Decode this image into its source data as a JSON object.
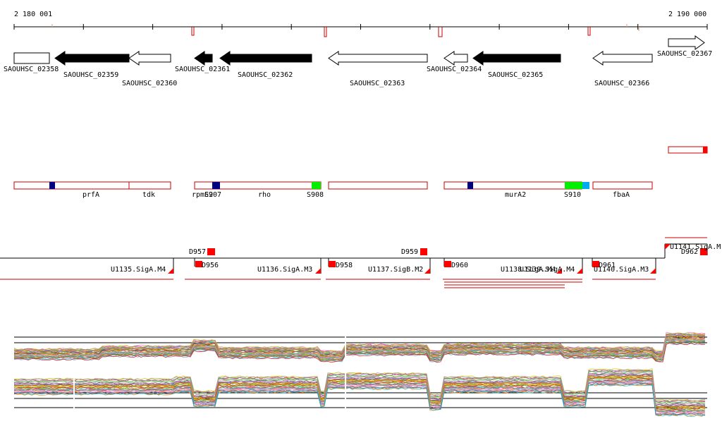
{
  "ruler": {
    "start_label": "2 180 001",
    "end_label": "2 190 000"
  },
  "genes": [
    {
      "label": "SAOUHSC_02358",
      "filled": false,
      "dir": "right"
    },
    {
      "label": "SAOUHSC_02359",
      "filled": true,
      "dir": "left"
    },
    {
      "label": "SAOUHSC_02360",
      "filled": false,
      "dir": "left"
    },
    {
      "label": "SAOUHSC_02361",
      "filled": true,
      "dir": "left"
    },
    {
      "label": "SAOUHSC_02362",
      "filled": true,
      "dir": "left"
    },
    {
      "label": "SAOUHSC_02363",
      "filled": false,
      "dir": "left"
    },
    {
      "label": "SAOUHSC_02364",
      "filled": false,
      "dir": "left"
    },
    {
      "label": "SAOUHSC_02365",
      "filled": true,
      "dir": "left"
    },
    {
      "label": "SAOUHSC_02366",
      "filled": false,
      "dir": "left"
    },
    {
      "label": "SAOUHSC_02367",
      "filled": false,
      "dir": "right"
    }
  ],
  "features": [
    {
      "label": "prfA"
    },
    {
      "label": "tdk"
    },
    {
      "label": "rpmE2"
    },
    {
      "label": "S907"
    },
    {
      "label": "rho"
    },
    {
      "label": "S908"
    },
    {
      "label": "murA2"
    },
    {
      "label": "S910"
    },
    {
      "label": "fbaA"
    }
  ],
  "segments": [
    {
      "label": "D957"
    },
    {
      "label": "D956"
    },
    {
      "label": "D958"
    },
    {
      "label": "D959"
    },
    {
      "label": "D960"
    },
    {
      "label": "D961"
    },
    {
      "label": "D962"
    },
    {
      "label": "U1135.SigA.M4"
    },
    {
      "label": "U1136.SigA.M3"
    },
    {
      "label": "U1137.SigB.M2"
    },
    {
      "label": "U1138.SigA.M4"
    },
    {
      "label": "U1139.SigA.M4"
    },
    {
      "label": "U1140.SigA.M3"
    },
    {
      "label": "U1141.SigA.M"
    }
  ],
  "colors": {
    "gene_fill": "#000000",
    "feature_border": "#cc0000",
    "marker_navy": "#000080",
    "marker_green": "#00ee00",
    "marker_cyan": "#00aaee",
    "segment_red": "#ff0000"
  }
}
